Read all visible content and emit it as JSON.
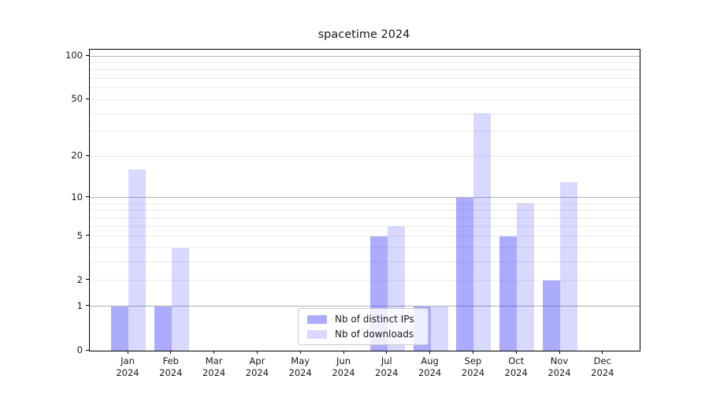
{
  "title": "spacetime 2024",
  "chart_data": {
    "type": "bar",
    "title": "spacetime 2024",
    "categories": [
      "Jan 2024",
      "Feb 2024",
      "Mar 2024",
      "Apr 2024",
      "May 2024",
      "Jun 2024",
      "Jul 2024",
      "Aug 2024",
      "Sep 2024",
      "Oct 2024",
      "Nov 2024",
      "Dec 2024"
    ],
    "series": [
      {
        "name": "Nb of distinct IPs",
        "color": "rgba(0,0,255,0.33)",
        "values": [
          1,
          1,
          0,
          0,
          0,
          0,
          5,
          1,
          10,
          5,
          2,
          0
        ]
      },
      {
        "name": "Nb of downloads",
        "color": "rgba(0,0,255,0.15)",
        "values": [
          16,
          4,
          0,
          0,
          0,
          0,
          6,
          1,
          40,
          9,
          13,
          0
        ]
      }
    ],
    "yscale": "log1p",
    "ylim": [
      0,
      100
    ],
    "yticks": [
      0,
      1,
      2,
      5,
      10,
      20,
      50,
      100
    ],
    "major_gridlines": [
      1,
      10,
      100
    ],
    "minor_gridlines": [
      2,
      3,
      4,
      5,
      6,
      7,
      8,
      9,
      20,
      30,
      40,
      50,
      60,
      70,
      80,
      90
    ],
    "grid": "horizontal",
    "legend_position": "lower center",
    "bar_group_width_fraction": 0.8
  },
  "legend": {
    "items": [
      {
        "label": "Nb of distinct IPs"
      },
      {
        "label": "Nb of downloads"
      }
    ]
  }
}
